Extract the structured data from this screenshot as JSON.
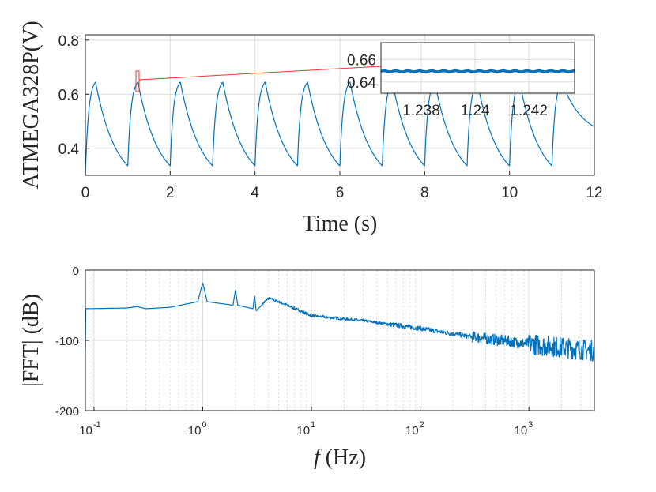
{
  "colors": {
    "series": "#0072BD",
    "zoom_box": "#e8382e",
    "axes": "#262626",
    "grid": "#dcdcdc"
  },
  "chart_data": [
    {
      "type": "line",
      "ylabel": "ATMEGA328P(V)",
      "xlabel": "Time (s)",
      "xlim": [
        0,
        12
      ],
      "ylim": [
        0.3,
        0.82
      ],
      "xticks": [
        "0",
        "2",
        "4",
        "6",
        "8",
        "10",
        "12"
      ],
      "yticks": [
        "0.4",
        "0.6",
        "0.8"
      ],
      "grid": true,
      "series": [
        {
          "x": [
            0,
            0.24,
            1.0,
            1.24,
            2.0,
            2.24,
            3.0,
            3.24,
            4.0,
            4.24,
            5.0,
            5.24,
            6.0,
            6.24,
            7.0,
            7.24,
            8.0,
            8.24,
            9.0,
            9.24,
            10.0,
            10.24,
            11.0,
            11.24,
            12.0
          ],
          "y": [
            0.3,
            0.645,
            0.335,
            0.645,
            0.335,
            0.645,
            0.335,
            0.645,
            0.335,
            0.645,
            0.335,
            0.645,
            0.335,
            0.645,
            0.335,
            0.645,
            0.335,
            0.645,
            0.335,
            0.645,
            0.335,
            0.645,
            0.335,
            0.645,
            0.48
          ]
        }
      ],
      "inset": {
        "xlim": [
          1.2365,
          1.2437
        ],
        "ylim": [
          0.63,
          0.675
        ],
        "xticks": [
          "1.238",
          "1.24",
          "1.242"
        ],
        "yticks": [
          "0.64",
          "0.66"
        ],
        "x": [
          1.2365,
          1.2437
        ],
        "y": [
          0.6495,
          0.6495
        ]
      }
    },
    {
      "type": "line",
      "ylabel": "|FFT| (dB)",
      "xlabel": "f (Hz)",
      "xscale": "log",
      "xlim": [
        0.0833,
        4000
      ],
      "ylim": [
        -200,
        0
      ],
      "yticks": [
        "0",
        "-100",
        "-200"
      ],
      "xticks": [
        {
          "base": "10",
          "exp": "-1"
        },
        {
          "base": "10",
          "exp": "0"
        },
        {
          "base": "10",
          "exp": "1"
        },
        {
          "base": "10",
          "exp": "2"
        },
        {
          "base": "10",
          "exp": "3"
        }
      ],
      "grid": true,
      "series": [
        {
          "x": [
            0.0833,
            0.2,
            0.25,
            0.3,
            0.5,
            0.9,
            1.0,
            1.1,
            1.9,
            2.0,
            2.1,
            2.9,
            3.0,
            3.1,
            4.0,
            5.0,
            6.0,
            10,
            30,
            100,
            300,
            1000,
            4000
          ],
          "y": [
            -55,
            -54,
            -52,
            -55,
            -53,
            -45,
            -18,
            -45,
            -50,
            -28,
            -50,
            -55,
            -35,
            -58,
            -40,
            -45,
            -50,
            -65,
            -72,
            -83,
            -95,
            -105,
            -115
          ]
        }
      ]
    }
  ]
}
